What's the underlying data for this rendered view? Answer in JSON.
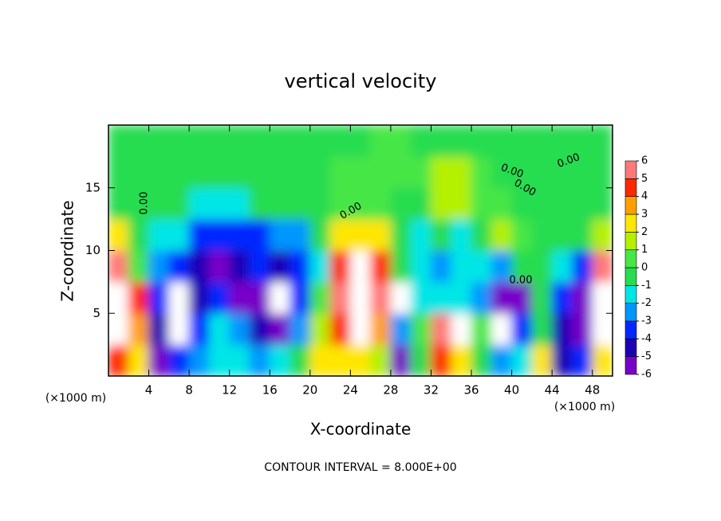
{
  "chart_data": {
    "type": "heatmap",
    "title": "vertical velocity",
    "x_label": "X-coordinate",
    "y_label": "Z-coordinate",
    "x_unit": "(×1000 m)",
    "x_unit_right": "(×1000 m)",
    "footer": "CONTOUR INTERVAL = 8.000E+00",
    "contour_labels": [
      "0.00",
      "0.00",
      "0.00",
      "0.00",
      "0.00",
      "0.00"
    ],
    "x": [
      1,
      3,
      5,
      7,
      9,
      11,
      13,
      15,
      17,
      19,
      21,
      23,
      25,
      27,
      29,
      31,
      33,
      35,
      37,
      39,
      41,
      43,
      45,
      47,
      49
    ],
    "y": [
      1.25,
      3.75,
      6.25,
      8.75,
      11.25,
      13.75,
      16.25,
      18.75
    ],
    "values": [
      [
        5,
        3,
        -5,
        -3,
        -2,
        -1,
        -1,
        -2,
        -1,
        0,
        3,
        3,
        3,
        2,
        -5,
        0,
        5,
        3,
        0,
        -2,
        -1,
        3,
        -4,
        -3,
        3
      ],
      [
        10,
        4,
        -4,
        10,
        -3,
        -1,
        -2,
        -4,
        -5,
        -2,
        2,
        5,
        10,
        4,
        -2,
        1,
        6,
        10,
        1,
        10,
        -3,
        0,
        -4,
        -5,
        10
      ],
      [
        10,
        5,
        -3,
        10,
        -4,
        -3,
        -5,
        -5,
        10,
        -3,
        1,
        6,
        10,
        6,
        10,
        -1,
        -1,
        -1,
        -2,
        -5,
        -5,
        0,
        -3,
        -5,
        10
      ],
      [
        6,
        1,
        -2,
        -3,
        -4,
        -5,
        -4,
        -3,
        -4,
        -3,
        -1,
        5,
        10,
        5,
        0,
        -1,
        -2,
        -1,
        -1,
        -2,
        0,
        0,
        -1,
        -3,
        6
      ],
      [
        3,
        0,
        -1,
        -1,
        -3,
        -3,
        -3,
        -3,
        -2,
        -2,
        0,
        3,
        3,
        3,
        0,
        -1,
        0,
        -1,
        0,
        2,
        1,
        0,
        0,
        0,
        2
      ],
      [
        0,
        0,
        0,
        0,
        -1,
        -1,
        -1,
        0,
        0,
        0,
        0,
        1,
        1,
        1,
        0,
        0,
        2,
        2,
        1,
        1,
        0,
        0,
        0,
        0,
        0
      ],
      [
        0,
        0,
        0,
        0,
        0,
        0,
        0,
        0,
        0,
        0,
        0,
        1,
        1,
        1,
        1,
        1,
        2,
        2,
        1,
        0,
        0,
        0,
        0,
        0,
        0
      ],
      [
        0,
        0,
        0,
        0,
        0,
        0,
        0,
        0,
        0,
        0,
        0,
        0,
        0,
        1,
        1,
        0,
        0,
        0,
        0,
        0,
        0,
        0,
        0,
        0,
        0
      ]
    ],
    "xlim": [
      0,
      50
    ],
    "ylim": [
      0,
      20
    ],
    "xticks": [
      4,
      8,
      12,
      16,
      20,
      24,
      28,
      32,
      36,
      40,
      44,
      48
    ],
    "yticks": [
      5,
      10,
      15
    ],
    "levels": [
      -6,
      -5,
      -4,
      -3,
      -2,
      -1,
      0,
      1,
      2,
      3,
      4,
      5,
      6
    ],
    "colors": [
      "#7800c8",
      "#1e00b4",
      "#0028ff",
      "#0096ff",
      "#00e6e6",
      "#28dc50",
      "#46e646",
      "#b4f000",
      "#ffe600",
      "#ffa000",
      "#ff2800",
      "#ff7878"
    ],
    "over_color": "#ffffff"
  }
}
